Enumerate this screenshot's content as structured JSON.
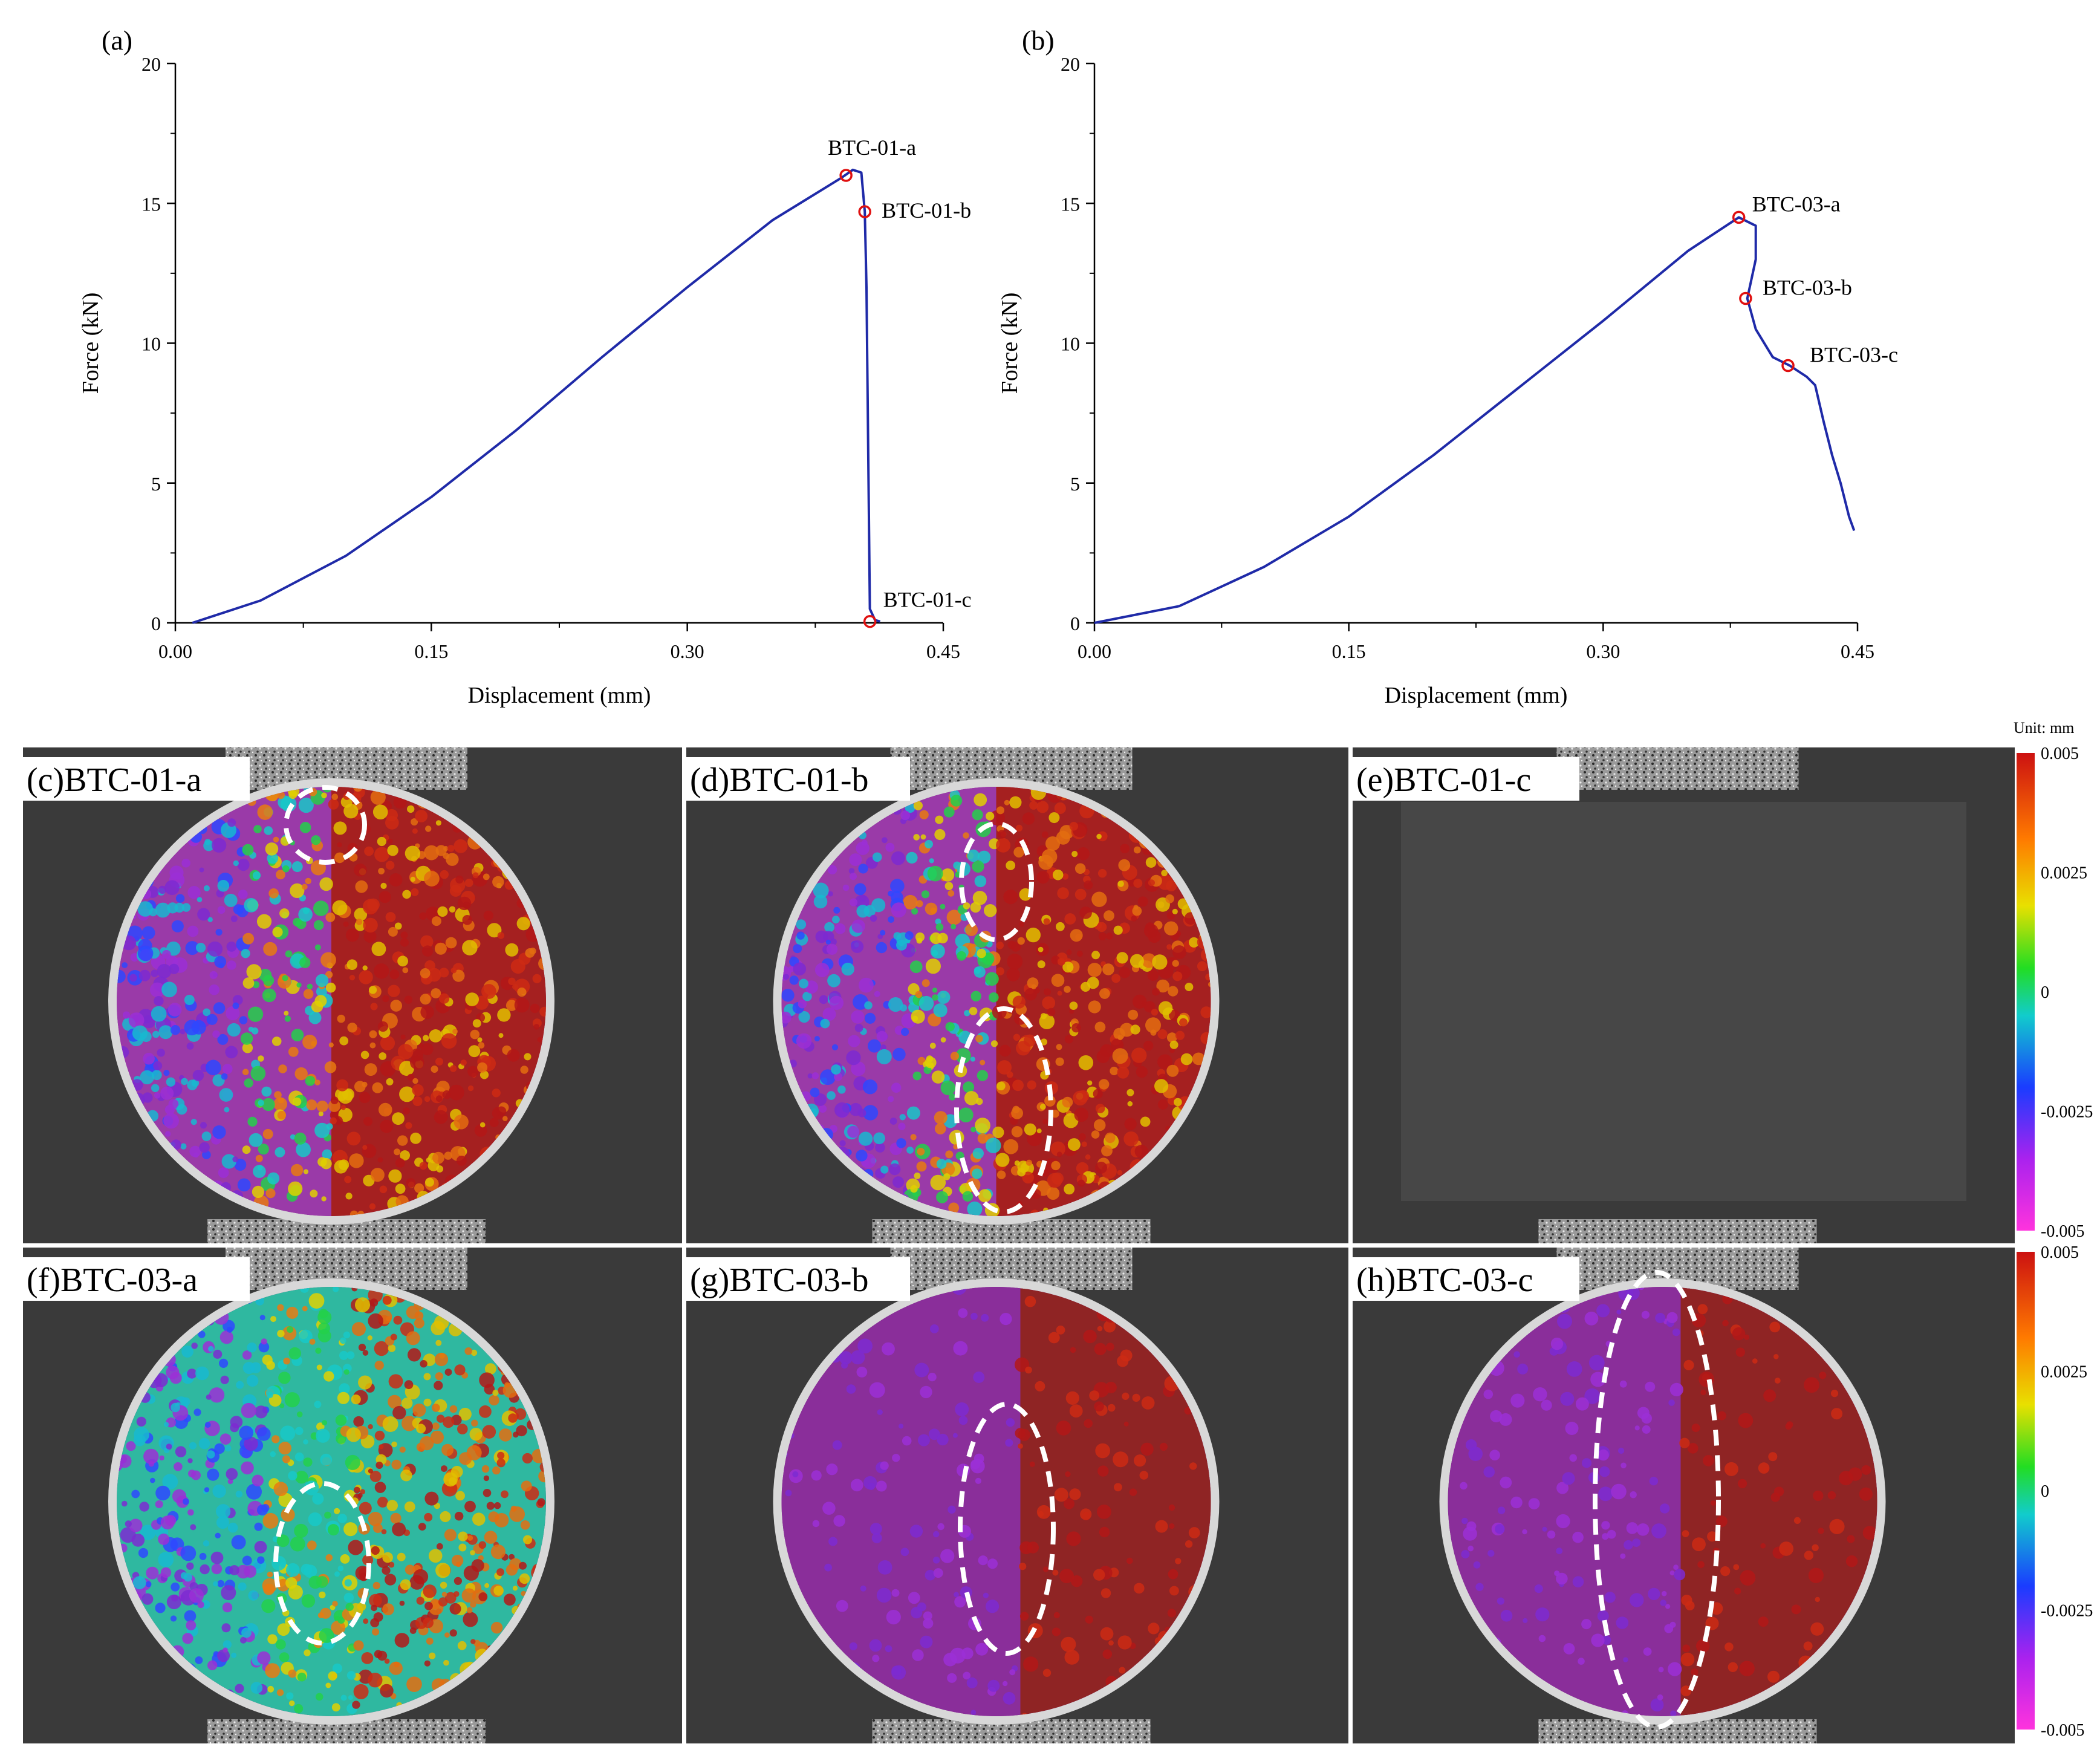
{
  "charts": [
    {
      "panel_label": "(a)",
      "chart_data": {
        "type": "line",
        "title": "",
        "xlabel": "Displacement (mm)",
        "ylabel": "Force (kN)",
        "xlim": [
          0,
          0.45
        ],
        "ylim": [
          0,
          20
        ],
        "xticks": [
          "0.00",
          "0.15",
          "0.30",
          "0.45"
        ],
        "yticks": [
          "0",
          "5",
          "10",
          "15",
          "20"
        ],
        "series": [
          {
            "name": "BTC-01",
            "color": "#1f2aa8",
            "x": [
              0.01,
              0.05,
              0.1,
              0.15,
              0.2,
              0.25,
              0.3,
              0.35,
              0.39,
              0.397,
              0.402,
              0.404,
              0.405,
              0.407,
              0.41,
              0.413
            ],
            "y": [
              0.0,
              0.8,
              2.4,
              4.5,
              6.9,
              9.5,
              12.0,
              14.4,
              15.9,
              16.2,
              16.1,
              14.7,
              12.0,
              0.5,
              0.1,
              0.05
            ]
          }
        ],
        "markers": [
          {
            "label": "BTC-01-a",
            "x": 0.393,
            "y": 16.0
          },
          {
            "label": "BTC-01-b",
            "x": 0.404,
            "y": 14.7
          },
          {
            "label": "BTC-01-c",
            "x": 0.407,
            "y": 0.05
          }
        ]
      }
    },
    {
      "panel_label": "(b)",
      "chart_data": {
        "type": "line",
        "title": "",
        "xlabel": "Displacement (mm)",
        "ylabel": "Force (kN)",
        "xlim": [
          0,
          0.45
        ],
        "ylim": [
          0,
          20
        ],
        "xticks": [
          "0.00",
          "0.15",
          "0.30",
          "0.45"
        ],
        "yticks": [
          "0",
          "5",
          "10",
          "15",
          "20"
        ],
        "series": [
          {
            "name": "BTC-03",
            "color": "#1f2aa8",
            "x": [
              0.0,
              0.05,
              0.1,
              0.15,
              0.2,
              0.25,
              0.3,
              0.35,
              0.38,
              0.39,
              0.39,
              0.385,
              0.39,
              0.4,
              0.41,
              0.42,
              0.425,
              0.43,
              0.435,
              0.44,
              0.445,
              0.448
            ],
            "y": [
              0.0,
              0.6,
              2.0,
              3.8,
              6.0,
              8.4,
              10.8,
              13.3,
              14.5,
              14.2,
              13.0,
              11.6,
              10.5,
              9.5,
              9.2,
              8.8,
              8.5,
              7.2,
              6.0,
              5.0,
              3.8,
              3.3
            ]
          }
        ],
        "markers": [
          {
            "label": "BTC-03-a",
            "x": 0.38,
            "y": 14.5
          },
          {
            "label": "BTC-03-b",
            "x": 0.384,
            "y": 11.6
          },
          {
            "label": "BTC-03-c",
            "x": 0.409,
            "y": 9.2
          }
        ]
      }
    }
  ],
  "dic_panels": [
    {
      "label": "(c)BTC-01-a",
      "pattern": "gradient",
      "fractured": false
    },
    {
      "label": "(d)BTC-01-b",
      "pattern": "gradient",
      "fractured": false
    },
    {
      "label": "(e)BTC-01-c",
      "pattern": "none",
      "fractured": true
    },
    {
      "label": "(f)BTC-03-a",
      "pattern": "mixed",
      "fractured": false
    },
    {
      "label": "(g)BTC-03-b",
      "pattern": "split",
      "fractured": false
    },
    {
      "label": "(h)BTC-03-c",
      "pattern": "split",
      "fractured": false
    }
  ],
  "colorbar": {
    "unit_label": "Unit: mm",
    "ticks": [
      "0.005",
      "0.0025",
      "0",
      "-0.0025",
      "-0.005"
    ],
    "colors": [
      "#cc1111",
      "#ff7a00",
      "#e8e000",
      "#22dd22",
      "#11cccc",
      "#1a3cff",
      "#aa22ee",
      "#ff33dd"
    ]
  }
}
